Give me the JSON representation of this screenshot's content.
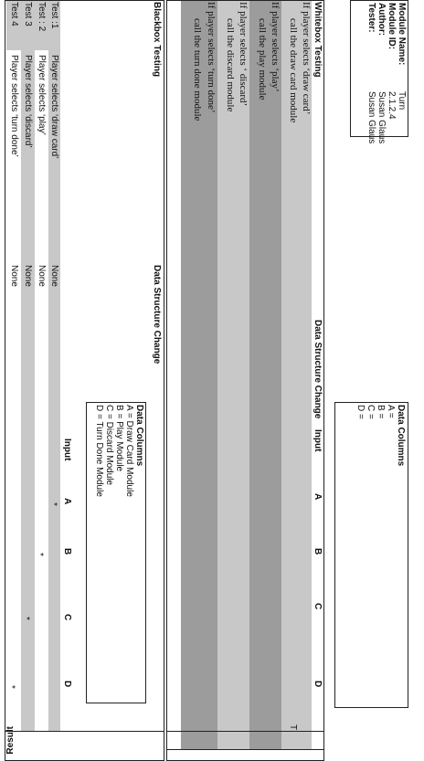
{
  "header": {
    "module_name_label": "Module Name:",
    "module_name": "Turn",
    "module_id_label": "Module ID:",
    "module_id": "2.1.2.4",
    "author_label": "Author:",
    "author": "Susan Glaus",
    "tester_label": "Tester:",
    "tester": "Susan Glaus"
  },
  "data_columns_top": {
    "title": "Data Columns",
    "lines": [
      "A =",
      "B =",
      "C =",
      "D ="
    ]
  },
  "whitebox": {
    "title": "Whitebox Testing",
    "columns": [
      "Data Structure Change",
      "Input",
      "A",
      "B",
      "C",
      "D"
    ],
    "result_mark": "T",
    "rows": [
      [
        "If player selects ‘draw card’",
        "call the draw card module"
      ],
      [
        "If player selects ‘play’",
        "call the play module"
      ],
      [
        "If player selects ‘ discard’",
        "call the discard module"
      ],
      [
        "If player selects ‘turn done’",
        "call the turn done module"
      ]
    ]
  },
  "blackbox": {
    "title": "Blackbox Testing",
    "columns": [
      "Data Structure Change",
      "Input",
      "A",
      "B",
      "C",
      "D",
      "Result"
    ],
    "legend": {
      "title": "Data Columns",
      "lines": [
        "A = Draw Card Module",
        "B = Play Module",
        "C = Discard Module",
        "D = Turn Done Module"
      ]
    },
    "rows": [
      {
        "test": "Test :1",
        "input": "Player selects ‘draw card’",
        "change": "None",
        "A": "*"
      },
      {
        "test": "Test : 2",
        "input": "Player selects ‘play’",
        "change": "None",
        "B": "*"
      },
      {
        "test": "Test  3",
        "input": "Player selects ‘discard’",
        "change": "None",
        "C": "*"
      },
      {
        "test": "Test  4",
        "input": "Player selects ‘turn done’",
        "change": "None",
        "D": "*"
      }
    ]
  }
}
